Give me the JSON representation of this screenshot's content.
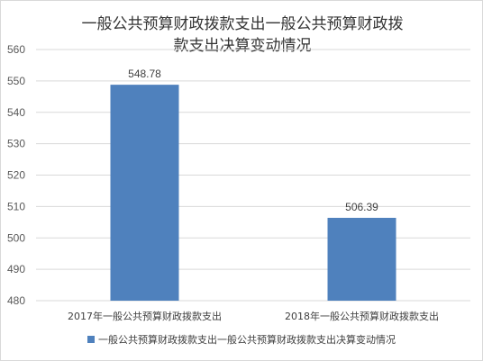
{
  "chart_data": {
    "type": "bar",
    "title": "一般公共预算财政拨款支出一般公共预算财政拨款支出决算变动情况",
    "title_lines": [
      "一般公共预算财政拨款支出一般公共预算财政拨",
      "款支出决算变动情况"
    ],
    "categories": [
      "2017年一般公共预算财政拨款支出",
      "2018年一般公共预算财政拨款支出"
    ],
    "series": [
      {
        "name": "一般公共预算财政拨款支出一般公共预算财政拨款支出决算变动情况",
        "values": [
          548.78,
          506.39
        ],
        "color": "#4f81bd"
      }
    ],
    "data_labels": [
      "548.78",
      "506.39"
    ],
    "yticks": [
      "480",
      "490",
      "500",
      "510",
      "520",
      "530",
      "540",
      "550",
      "560"
    ],
    "ylim": [
      480,
      560
    ],
    "grid": true,
    "legend_position": "bottom"
  }
}
